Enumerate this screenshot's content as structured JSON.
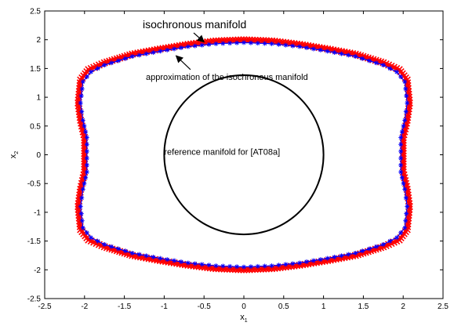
{
  "chart_data": {
    "type": "line",
    "title": "",
    "xlabel": "x",
    "xlabel_sub": "1",
    "ylabel": "x",
    "ylabel_sub": "2",
    "xlim": [
      -2.5,
      2.5
    ],
    "ylim": [
      -2.5,
      2.5
    ],
    "xticks": [
      "-2.5",
      "-2",
      "-1.5",
      "-1",
      "-0.5",
      "0",
      "0.5",
      "1",
      "1.5",
      "2",
      "2.5"
    ],
    "yticks": [
      "-2.5",
      "-2",
      "-1.5",
      "-1",
      "-0.5",
      "0",
      "0.5",
      "1",
      "1.5",
      "2",
      "2.5"
    ],
    "grid": false,
    "legend": "none",
    "series": [
      {
        "role": "isochronous",
        "color": "#ff0000",
        "marker": "x",
        "points": [
          [
            0.0,
            2.0
          ],
          [
            0.35,
            1.98
          ],
          [
            0.7,
            1.92
          ],
          [
            1.05,
            1.84
          ],
          [
            1.4,
            1.75
          ],
          [
            1.75,
            1.6
          ],
          [
            1.95,
            1.48
          ],
          [
            2.05,
            1.3
          ],
          [
            2.08,
            0.9
          ],
          [
            2.05,
            0.6
          ],
          [
            2.0,
            0.3
          ],
          [
            2.0,
            -0.3
          ],
          [
            2.05,
            -0.6
          ],
          [
            2.08,
            -0.9
          ],
          [
            2.05,
            -1.3
          ],
          [
            1.95,
            -1.48
          ],
          [
            1.75,
            -1.6
          ],
          [
            1.4,
            -1.75
          ],
          [
            1.05,
            -1.84
          ],
          [
            0.7,
            -1.92
          ],
          [
            0.35,
            -1.98
          ],
          [
            0.0,
            -2.0
          ],
          [
            -0.35,
            -1.98
          ],
          [
            -0.7,
            -1.92
          ],
          [
            -1.05,
            -1.84
          ],
          [
            -1.4,
            -1.75
          ],
          [
            -1.75,
            -1.6
          ],
          [
            -1.95,
            -1.48
          ],
          [
            -2.05,
            -1.3
          ],
          [
            -2.08,
            -0.9
          ],
          [
            -2.05,
            -0.6
          ],
          [
            -2.0,
            -0.3
          ],
          [
            -2.0,
            0.3
          ],
          [
            -2.05,
            0.6
          ],
          [
            -2.08,
            0.9
          ],
          [
            -2.05,
            1.3
          ],
          [
            -1.95,
            1.48
          ],
          [
            -1.75,
            1.6
          ],
          [
            -1.4,
            1.75
          ],
          [
            -1.05,
            1.84
          ],
          [
            -0.7,
            1.92
          ],
          [
            -0.35,
            1.98
          ],
          [
            0.0,
            2.0
          ]
        ]
      },
      {
        "role": "approximation",
        "color": "#0000ff",
        "marker": "*",
        "points": [
          [
            0.0,
            1.95
          ],
          [
            0.35,
            1.93
          ],
          [
            0.7,
            1.88
          ],
          [
            1.05,
            1.8
          ],
          [
            1.4,
            1.71
          ],
          [
            1.75,
            1.56
          ],
          [
            1.92,
            1.44
          ],
          [
            2.02,
            1.27
          ],
          [
            2.05,
            0.9
          ],
          [
            2.02,
            0.6
          ],
          [
            1.97,
            0.3
          ],
          [
            1.97,
            -0.3
          ],
          [
            2.02,
            -0.6
          ],
          [
            2.05,
            -0.9
          ],
          [
            2.02,
            -1.27
          ],
          [
            1.92,
            -1.44
          ],
          [
            1.75,
            -1.56
          ],
          [
            1.4,
            -1.71
          ],
          [
            1.05,
            -1.8
          ],
          [
            0.7,
            -1.88
          ],
          [
            0.35,
            -1.93
          ],
          [
            0.0,
            -1.95
          ],
          [
            -0.35,
            -1.93
          ],
          [
            -0.7,
            -1.88
          ],
          [
            -1.05,
            -1.8
          ],
          [
            -1.4,
            -1.71
          ],
          [
            -1.75,
            -1.56
          ],
          [
            -1.92,
            -1.44
          ],
          [
            -2.02,
            -1.27
          ],
          [
            -2.05,
            -0.9
          ],
          [
            -2.02,
            -0.6
          ],
          [
            -1.97,
            -0.3
          ],
          [
            -1.97,
            0.3
          ],
          [
            -2.02,
            0.6
          ],
          [
            -2.05,
            0.9
          ],
          [
            -2.02,
            1.27
          ],
          [
            -1.92,
            1.44
          ],
          [
            -1.75,
            1.56
          ],
          [
            -1.4,
            1.71
          ],
          [
            -1.05,
            1.8
          ],
          [
            -0.7,
            1.88
          ],
          [
            -0.35,
            1.93
          ],
          [
            0.0,
            1.95
          ]
        ]
      },
      {
        "role": "reference",
        "color": "#000000",
        "shape": "circle",
        "center": [
          0,
          0
        ],
        "radius": 1.0
      }
    ],
    "annotations": [
      {
        "id": "iso",
        "text": "isochronous manifold",
        "x": -1.27,
        "y": 2.2,
        "arrow_from": [
          -0.63,
          2.12
        ],
        "arrow_to": [
          -0.5,
          1.96
        ]
      },
      {
        "id": "approx",
        "text": "approximation of the isochronous manifold",
        "x": -1.23,
        "y": 1.3,
        "arrow_from": [
          -0.67,
          1.48
        ],
        "arrow_to": [
          -0.85,
          1.72
        ]
      },
      {
        "id": "ref",
        "text": "reference manifold for [AT08a]",
        "x": -1.0,
        "y": 0.0
      }
    ]
  }
}
